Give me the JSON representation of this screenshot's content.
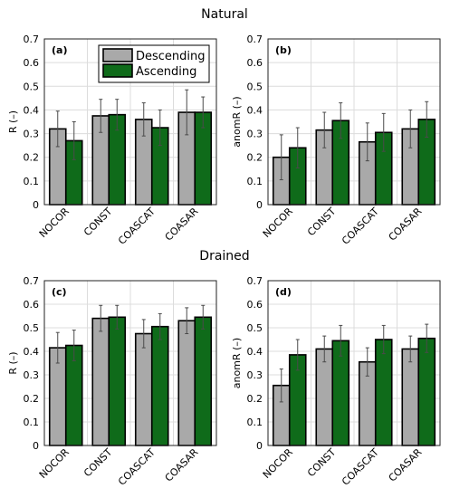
{
  "figure": {
    "titles": [
      "Natural",
      "Drained"
    ]
  },
  "legend": {
    "entries": [
      {
        "label": "Descending",
        "color": "#a9a9a9"
      },
      {
        "label": "Ascending",
        "color": "#0f6b1a"
      }
    ],
    "location": "top-right of panel (a)"
  },
  "chart_data": [
    {
      "type": "bar",
      "panel": "(a)",
      "group_title": "Natural",
      "categories": [
        "NOCOR",
        "CONST",
        "COASCAT",
        "COASAR"
      ],
      "ylabel": "R (–)",
      "ylim": [
        0,
        0.7
      ],
      "yticks": [
        0,
        0.1,
        0.2,
        0.3,
        0.4,
        0.5,
        0.6,
        0.7
      ],
      "grid": true,
      "series": [
        {
          "name": "Descending",
          "values": [
            0.32,
            0.375,
            0.36,
            0.39
          ],
          "errors": [
            0.075,
            0.07,
            0.07,
            0.095
          ]
        },
        {
          "name": "Ascending",
          "values": [
            0.27,
            0.38,
            0.325,
            0.39
          ],
          "errors": [
            0.08,
            0.065,
            0.075,
            0.065
          ]
        }
      ]
    },
    {
      "type": "bar",
      "panel": "(b)",
      "group_title": "Natural",
      "categories": [
        "NOCOR",
        "CONST",
        "COASCAT",
        "COASAR"
      ],
      "ylabel": "anomR (–)",
      "ylim": [
        0,
        0.7
      ],
      "yticks": [
        0,
        0.1,
        0.2,
        0.3,
        0.4,
        0.5,
        0.6,
        0.7
      ],
      "grid": true,
      "series": [
        {
          "name": "Descending",
          "values": [
            0.2,
            0.315,
            0.265,
            0.32
          ],
          "errors": [
            0.095,
            0.075,
            0.08,
            0.08
          ]
        },
        {
          "name": "Ascending",
          "values": [
            0.24,
            0.355,
            0.305,
            0.36
          ],
          "errors": [
            0.085,
            0.075,
            0.08,
            0.075
          ]
        }
      ]
    },
    {
      "type": "bar",
      "panel": "(c)",
      "group_title": "Drained",
      "categories": [
        "NOCOR",
        "CONST",
        "COASCAT",
        "COASAR"
      ],
      "ylabel": "R (–)",
      "ylim": [
        0,
        0.7
      ],
      "yticks": [
        0,
        0.1,
        0.2,
        0.3,
        0.4,
        0.5,
        0.6,
        0.7
      ],
      "grid": true,
      "series": [
        {
          "name": "Descending",
          "values": [
            0.415,
            0.54,
            0.475,
            0.53
          ],
          "errors": [
            0.065,
            0.055,
            0.06,
            0.055
          ]
        },
        {
          "name": "Ascending",
          "values": [
            0.425,
            0.545,
            0.505,
            0.545
          ],
          "errors": [
            0.065,
            0.05,
            0.055,
            0.05
          ]
        }
      ]
    },
    {
      "type": "bar",
      "panel": "(d)",
      "group_title": "Drained",
      "categories": [
        "NOCOR",
        "CONST",
        "COASCAT",
        "COASAR"
      ],
      "ylabel": "anomR (–)",
      "ylim": [
        0,
        0.7
      ],
      "yticks": [
        0,
        0.1,
        0.2,
        0.3,
        0.4,
        0.5,
        0.6,
        0.7
      ],
      "grid": true,
      "series": [
        {
          "name": "Descending",
          "values": [
            0.255,
            0.41,
            0.355,
            0.41
          ],
          "errors": [
            0.07,
            0.055,
            0.06,
            0.055
          ]
        },
        {
          "name": "Ascending",
          "values": [
            0.385,
            0.445,
            0.45,
            0.455
          ],
          "errors": [
            0.065,
            0.065,
            0.06,
            0.06
          ]
        }
      ]
    }
  ]
}
